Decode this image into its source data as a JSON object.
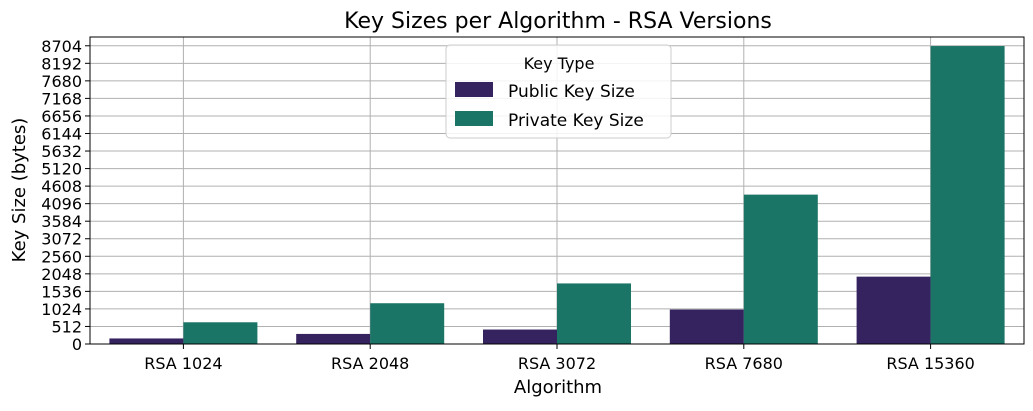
{
  "chart_data": {
    "type": "bar",
    "title": "Key Sizes per Algorithm - RSA Versions",
    "xlabel": "Algorithm",
    "ylabel": "Key Size (bytes)",
    "categories": [
      "RSA 1024",
      "RSA 2048",
      "RSA 3072",
      "RSA 7680",
      "RSA 15360"
    ],
    "series": [
      {
        "name": "Public Key Size",
        "color": "#35235f",
        "values": [
          162,
          294,
          422,
          1006,
          1966
        ]
      },
      {
        "name": "Private Key Size",
        "color": "#1b7567",
        "values": [
          634,
          1190,
          1768,
          4360,
          8696
        ]
      }
    ],
    "ylim": [
      0,
      8960
    ],
    "yticks": [
      0,
      512,
      1024,
      1536,
      2048,
      2560,
      3072,
      3584,
      4096,
      4608,
      5120,
      5632,
      6144,
      6656,
      7168,
      7680,
      8192,
      8704
    ],
    "grid": true,
    "legend": {
      "title": "Key Type",
      "placement": "top-center"
    }
  }
}
